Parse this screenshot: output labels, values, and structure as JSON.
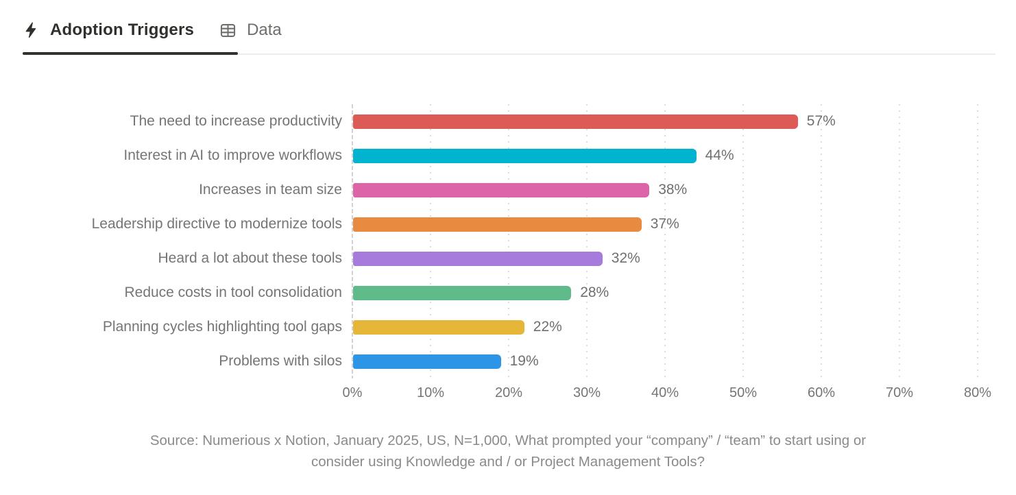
{
  "tabs": [
    {
      "label": "Adoption Triggers",
      "icon": "lightning-icon",
      "active": true
    },
    {
      "label": "Data",
      "icon": "table-icon",
      "active": false
    }
  ],
  "colors": {
    "active_tab_text": "#32302c",
    "inactive_tab_text": "#6f6e6a",
    "active_tab_underline": "#33312e",
    "label_text": "#757575",
    "value_text": "#6f6f6f",
    "source_text": "#8a8a8a",
    "gridline": "#dcdcdc"
  },
  "chart_data": {
    "type": "bar",
    "orientation": "horizontal",
    "title": "",
    "xlabel": "",
    "ylabel": "",
    "xlim": [
      0,
      80
    ],
    "x_tick_labels": [
      "0%",
      "10%",
      "20%",
      "30%",
      "40%",
      "50%",
      "60%",
      "70%",
      "80%"
    ],
    "grid": "dotted-vertical",
    "legend": "none",
    "categories": [
      "The need to increase productivity",
      "Interest in AI to improve workflows",
      "Increases in team size",
      "Leadership directive to modernize tools",
      "Heard a lot about these tools",
      "Reduce costs in tool consolidation",
      "Planning cycles highlighting tool gaps",
      "Problems with silos"
    ],
    "values": [
      57,
      44,
      38,
      37,
      32,
      28,
      22,
      19
    ],
    "value_labels": [
      "57%",
      "44%",
      "38%",
      "37%",
      "32%",
      "28%",
      "22%",
      "19%"
    ],
    "bar_colors": [
      "#dc5b56",
      "#00b4cf",
      "#de64a8",
      "#e88a40",
      "#a77bdb",
      "#5fbb8a",
      "#e5b637",
      "#2d95e5"
    ]
  },
  "source_note": {
    "line1": "Source: Numerious x Notion, January 2025, US, N=1,000, What prompted your “company” / “team” to start using or",
    "line2": "consider using Knowledge and / or Project Management Tools?"
  }
}
